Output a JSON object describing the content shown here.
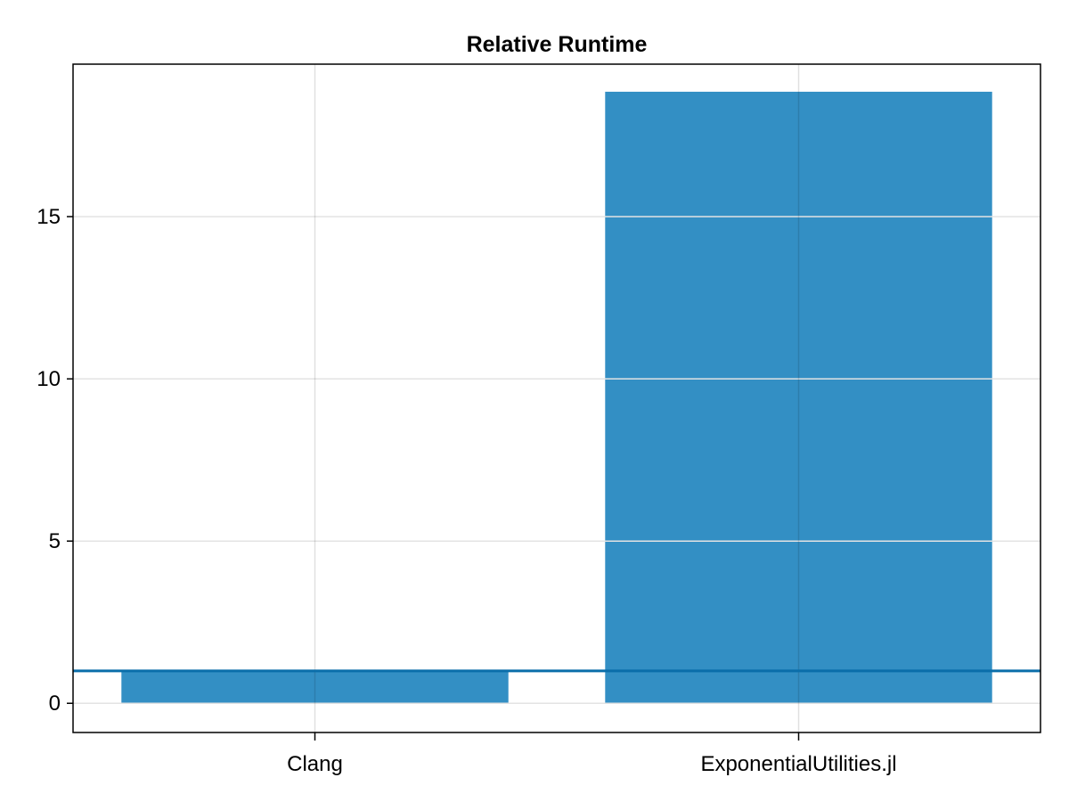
{
  "chart_data": {
    "type": "bar",
    "title": "Relative Runtime",
    "xlabel": "",
    "ylabel": "",
    "categories": [
      "Clang",
      "ExponentialUtilities.jl"
    ],
    "values": [
      1.0,
      18.85
    ],
    "ylim": [
      -0.9,
      19.7
    ],
    "yticks": [
      0,
      5,
      10,
      15
    ],
    "reference_line": 1.0,
    "grid": true,
    "colors": {
      "bar": "#338fc4",
      "reference_line": "#0a6eaa",
      "grid": "#e3e3e3",
      "axis": "#000000"
    }
  }
}
